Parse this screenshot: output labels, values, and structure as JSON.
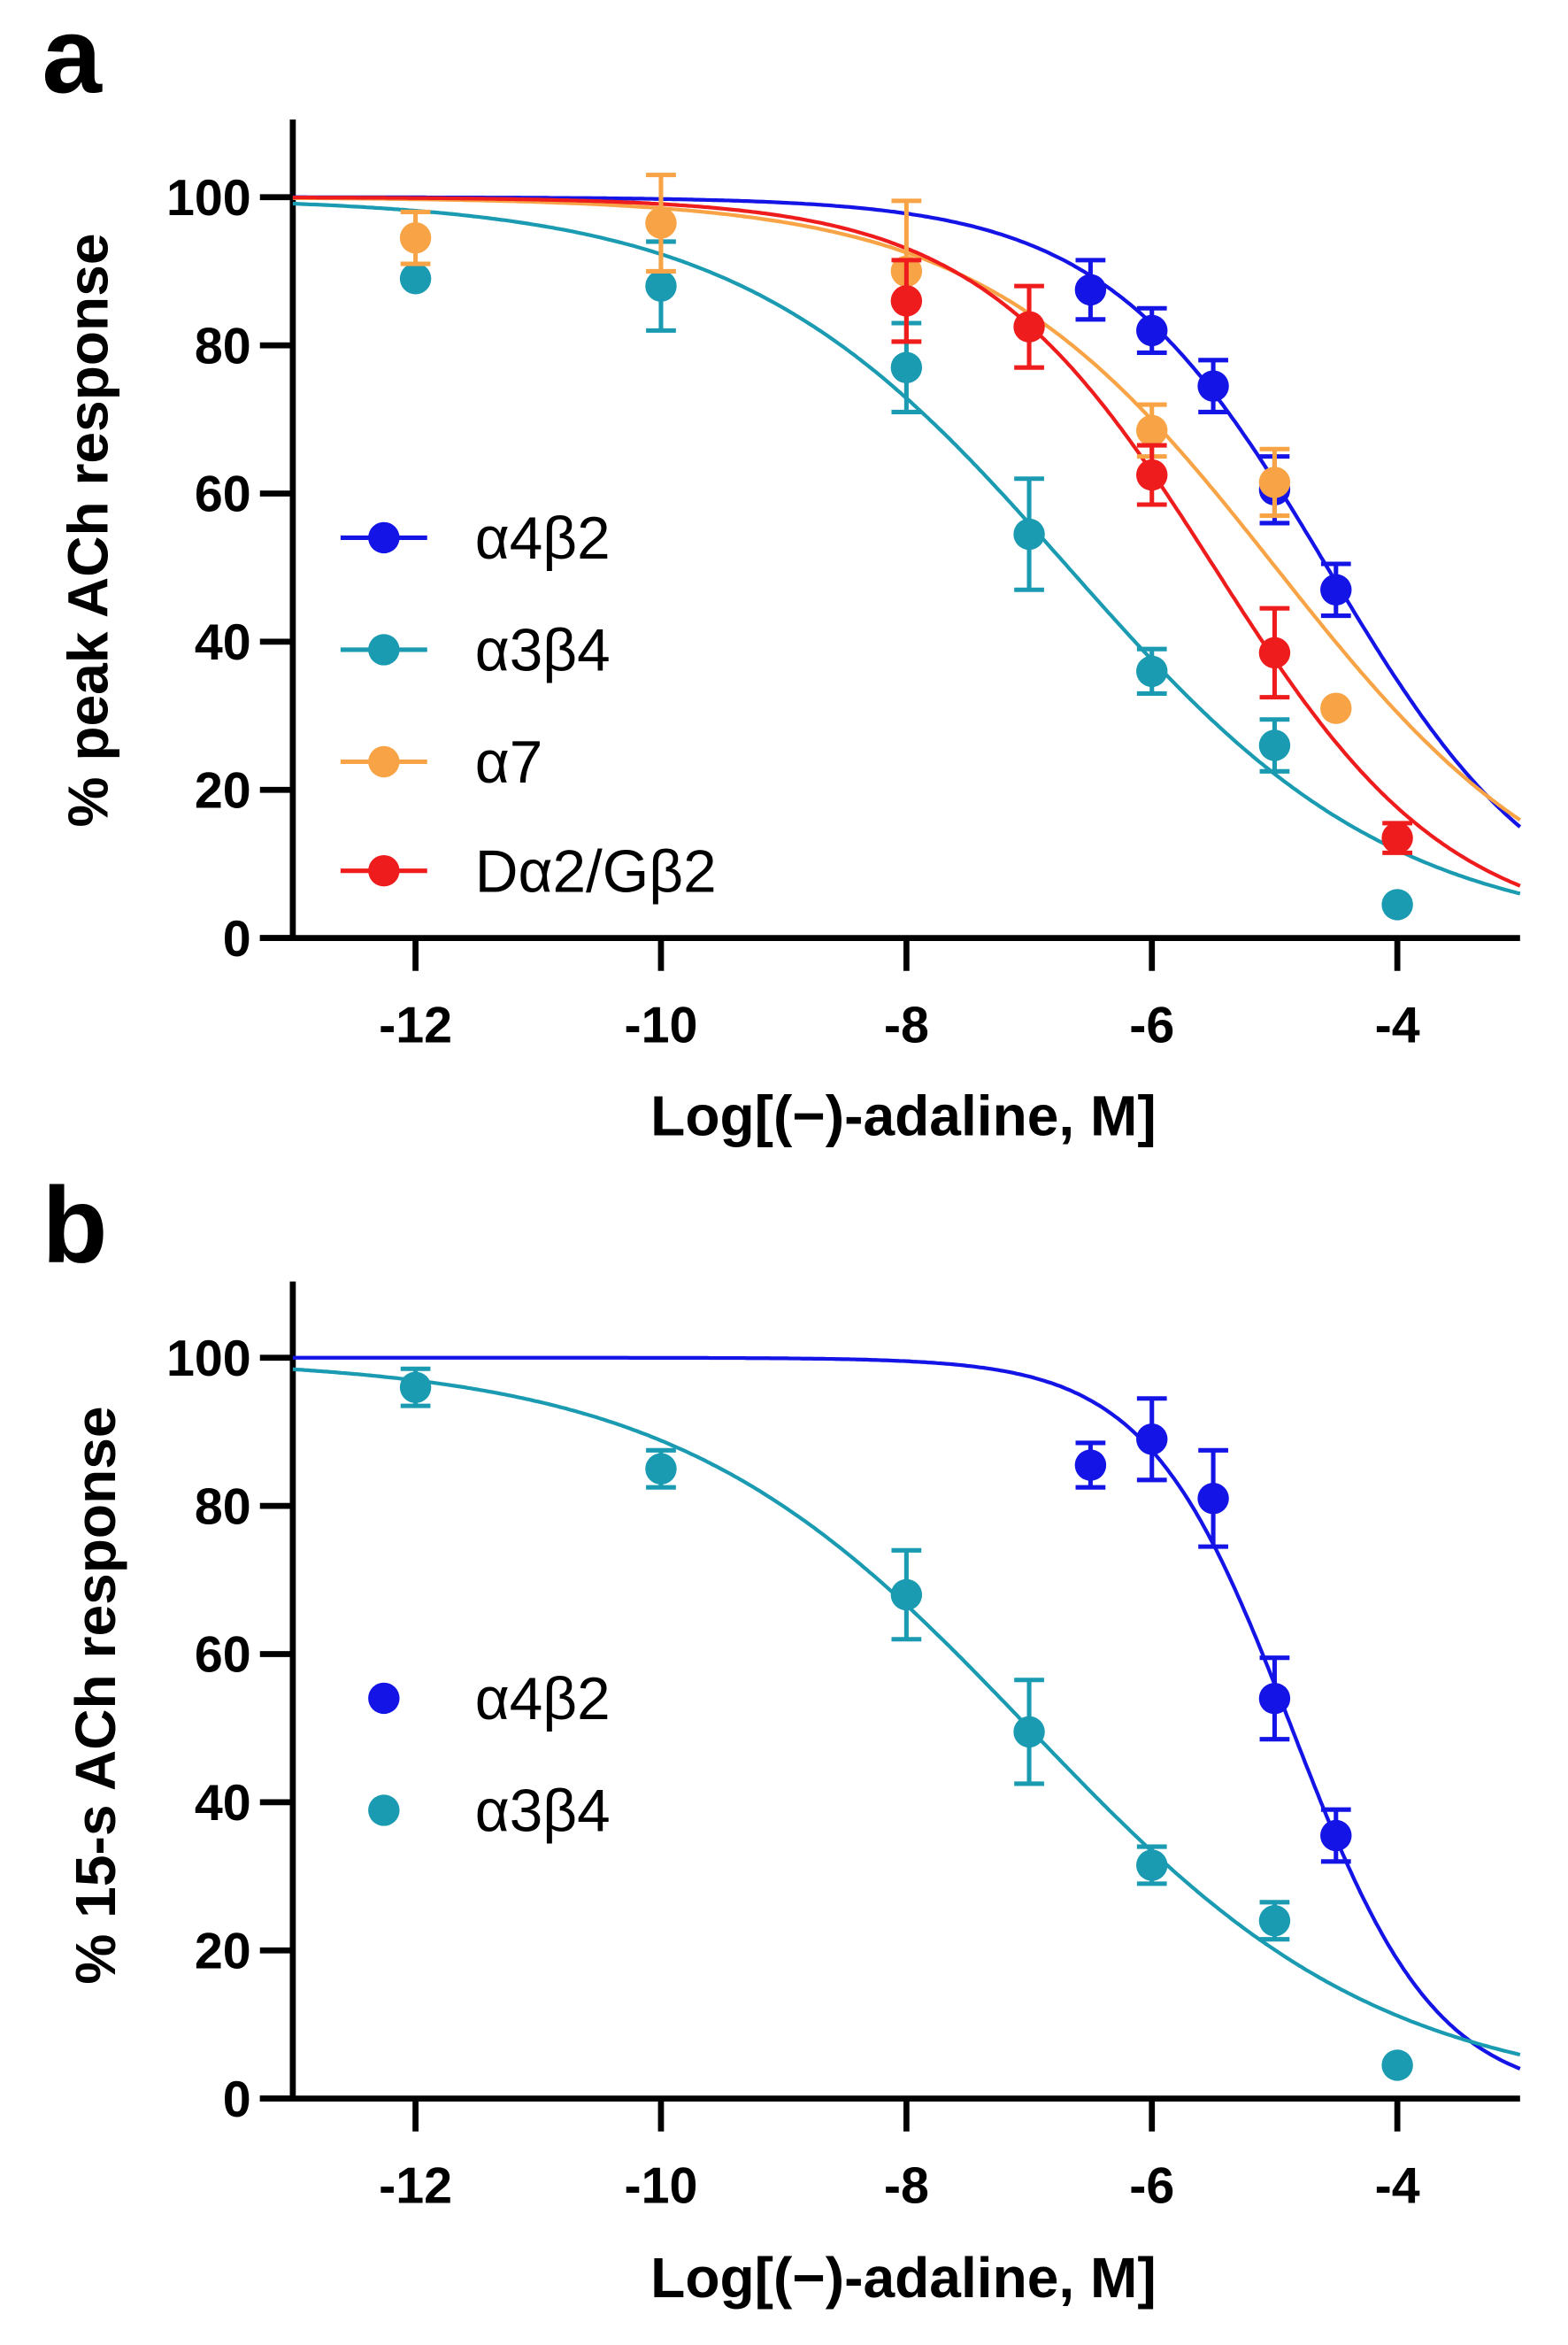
{
  "chart_data": [
    {
      "panel_label": "a",
      "type": "scatter",
      "xlabel": "Log[(−)-adaline, M]",
      "ylabel": "% peak ACh response",
      "xlim": [
        -13,
        -3
      ],
      "ylim": [
        0,
        110
      ],
      "xticks": [
        -12,
        -10,
        -8,
        -6,
        -4
      ],
      "xtick_labels": [
        "-12",
        "-10",
        "-8",
        "-6",
        "-4"
      ],
      "yticks": [
        0,
        20,
        40,
        60,
        80,
        100
      ],
      "ytick_labels": [
        "0",
        "20",
        "40",
        "60",
        "80",
        "100"
      ],
      "legend_position": "center-left",
      "legend_style": "line-marker",
      "series": [
        {
          "name": "α4β2",
          "color": "#1414E6",
          "x": [
            -6.5,
            -6,
            -5.5,
            -5,
            -4.5
          ],
          "y": [
            87.5,
            82,
            74.5,
            60.5,
            47
          ],
          "err": [
            4,
            3,
            3.5,
            4.5,
            3.5
          ],
          "fit": {
            "top": 100,
            "bottom": 0,
            "logIC50": -4.57,
            "hill": 0.48
          }
        },
        {
          "name": "α3β4",
          "color": "#1A9BB2",
          "x": [
            -12,
            -10,
            -8,
            -7,
            -6,
            -5,
            -4
          ],
          "y": [
            89,
            88,
            77,
            54.5,
            36,
            26,
            4.5
          ],
          "err": [
            0,
            6,
            6,
            7.5,
            3,
            3.5,
            0
          ],
          "fit": {
            "top": 100,
            "bottom": 0,
            "logIC50": -6.68,
            "hill": 0.325
          }
        },
        {
          "name": "α7",
          "color": "#F8A446",
          "x": [
            -12,
            -10,
            -8,
            -6,
            -5,
            -4.5
          ],
          "y": [
            94.5,
            96.5,
            90,
            68.5,
            61.5,
            31
          ],
          "err": [
            3.5,
            6.5,
            9.5,
            3.5,
            4.5,
            0
          ],
          "fit": {
            "top": 100,
            "bottom": 0,
            "logIC50": -4.99,
            "hill": 0.363
          }
        },
        {
          "name": "Dα2/Gβ2",
          "color": "#EE1C1C",
          "x": [
            -8,
            -7,
            -6,
            -5,
            -4
          ],
          "y": [
            86,
            82.5,
            62.5,
            38.5,
            13.5
          ],
          "err": [
            5.5,
            5.5,
            4,
            6,
            2
          ],
          "fit": {
            "top": 100,
            "bottom": 0,
            "logIC50": -5.49,
            "hill": 0.45
          }
        }
      ]
    },
    {
      "panel_label": "b",
      "type": "scatter",
      "xlabel": "Log[(−)-adaline, M]",
      "ylabel": "% 15-s ACh response",
      "xlim": [
        -13,
        -3
      ],
      "ylim": [
        0,
        110
      ],
      "xticks": [
        -12,
        -10,
        -8,
        -6,
        -4
      ],
      "xtick_labels": [
        "-12",
        "-10",
        "-8",
        "-6",
        "-4"
      ],
      "yticks": [
        0,
        20,
        40,
        60,
        80,
        100
      ],
      "ytick_labels": [
        "0",
        "20",
        "40",
        "60",
        "80",
        "100"
      ],
      "legend_position": "center-left",
      "legend_style": "marker",
      "series": [
        {
          "name": "α4β2",
          "color": "#1414E6",
          "x": [
            -6.5,
            -6,
            -5.5,
            -5,
            -4.5
          ],
          "y": [
            85.5,
            89,
            81,
            54,
            35.5
          ],
          "err": [
            3,
            5.5,
            6.5,
            5.5,
            3.5
          ],
          "fit": {
            "top": 100,
            "bottom": 0,
            "logIC50": -4.86,
            "hill": 0.74
          }
        },
        {
          "name": "α3β4",
          "color": "#1A9BB2",
          "x": [
            -12,
            -10,
            -8,
            -7,
            -6,
            -5,
            -4
          ],
          "y": [
            96,
            85,
            68,
            49.5,
            31.5,
            24,
            4.5
          ],
          "err": [
            2.5,
            2.5,
            6,
            7,
            2.5,
            2.5,
            0
          ],
          "fit": {
            "top": 100,
            "bottom": 0,
            "logIC50": -7.0,
            "hill": 0.3
          }
        }
      ]
    }
  ]
}
